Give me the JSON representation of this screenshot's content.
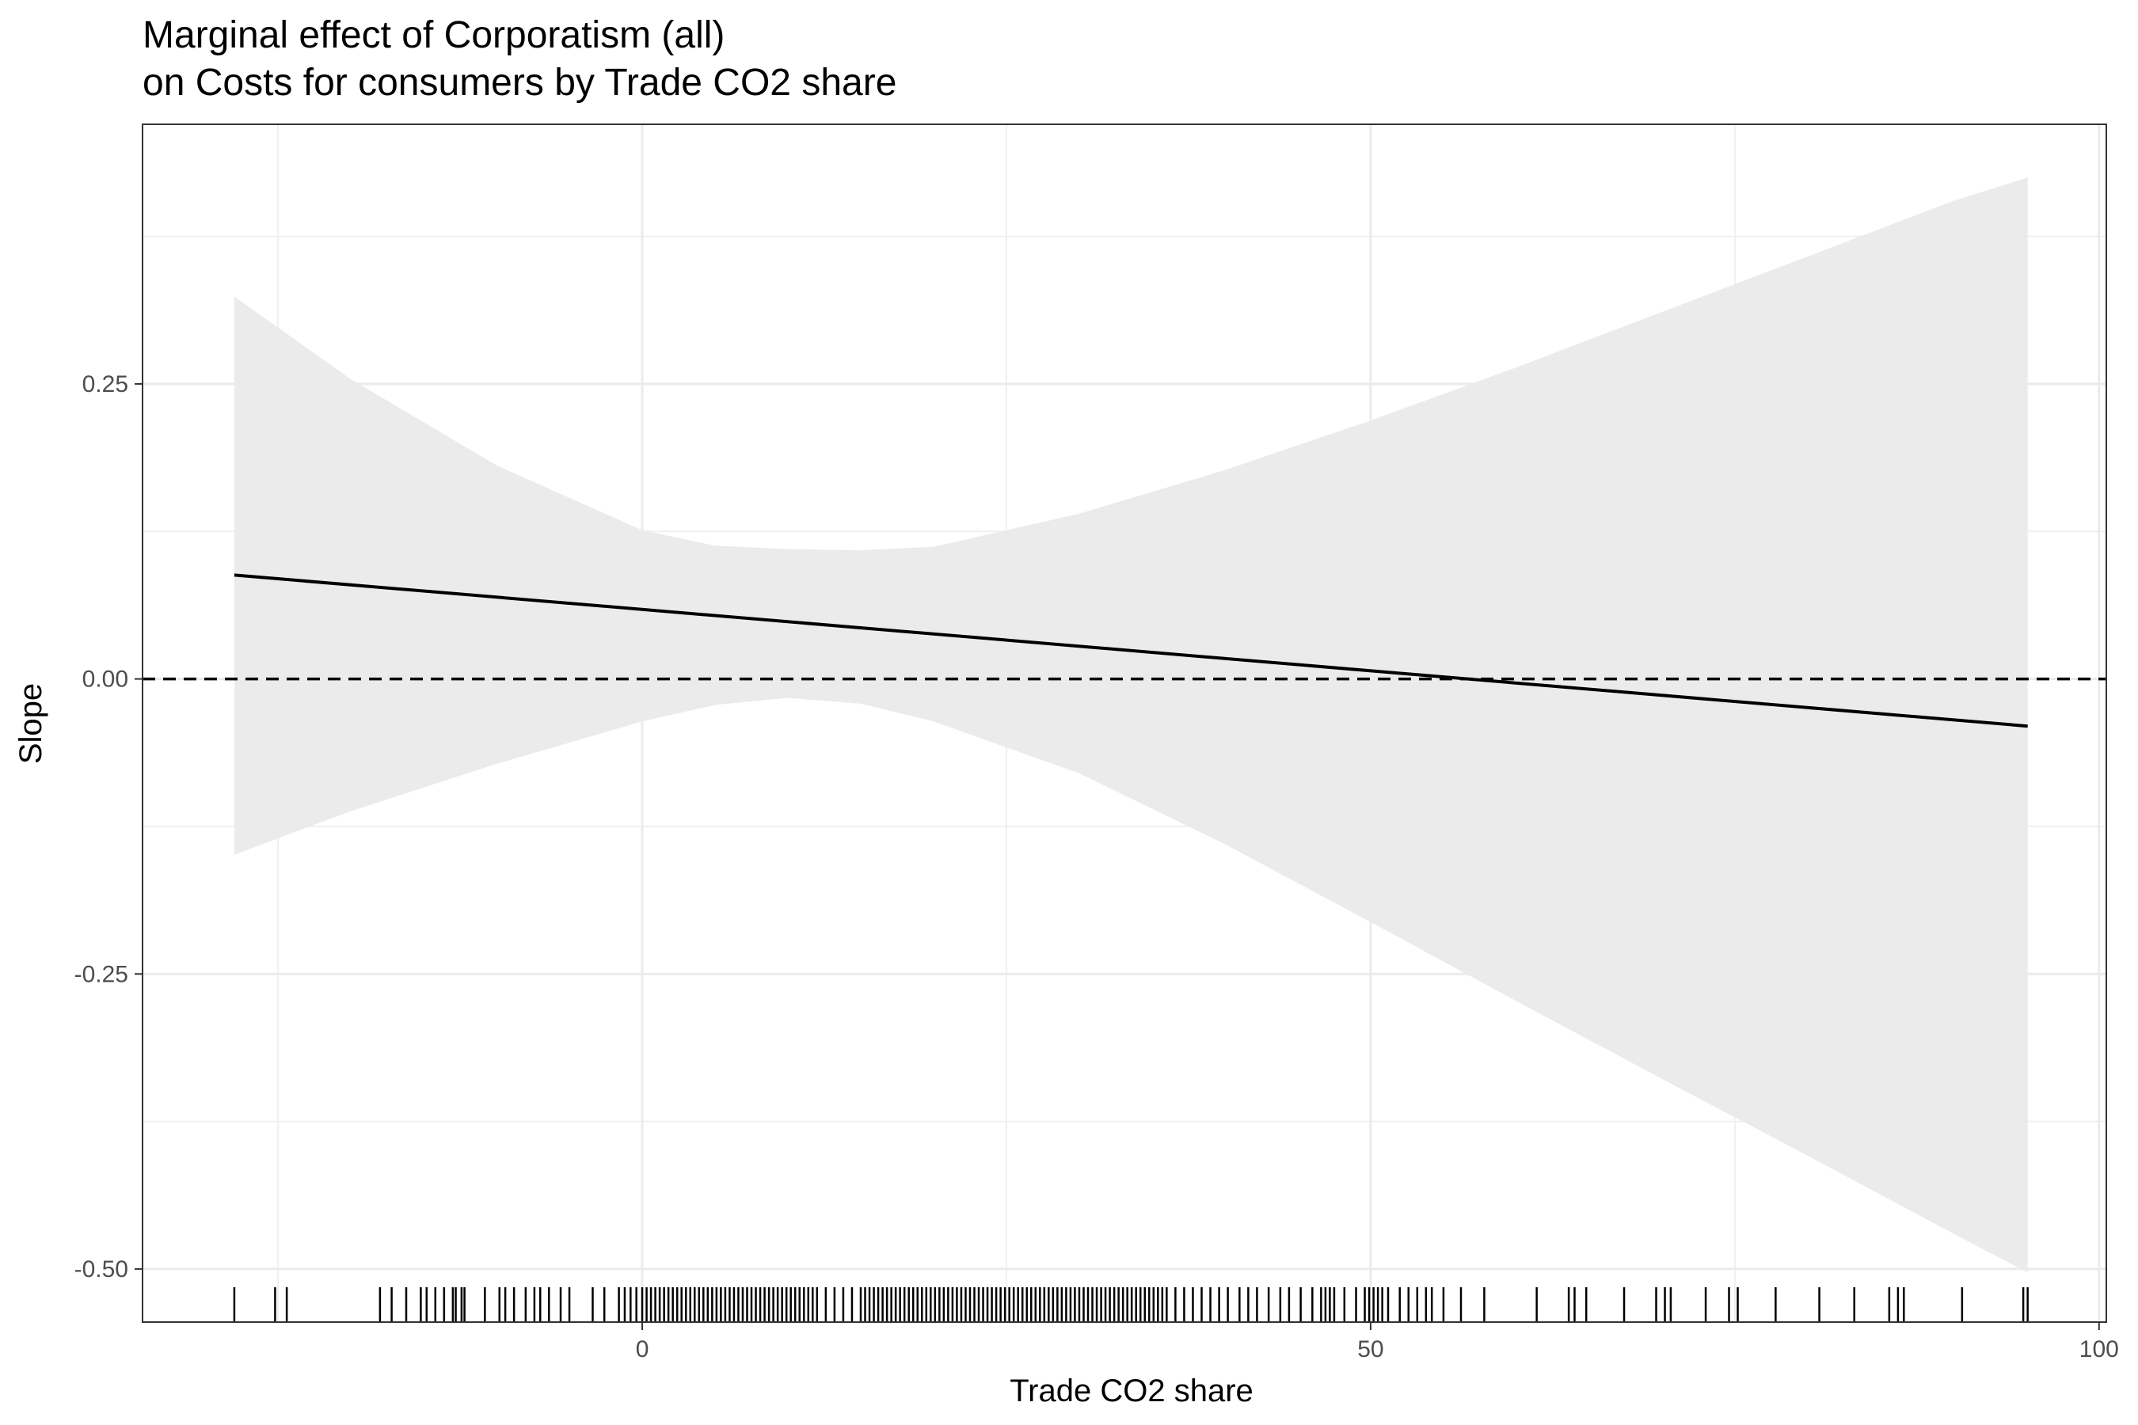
{
  "chart_data": {
    "type": "line",
    "title": "Marginal effect of Corporatism (all)",
    "subtitle": "on Costs for consumers by Trade CO2 share",
    "xlabel": "Trade CO2 share",
    "ylabel": "Slope",
    "xlim": [
      -34.3,
      100.5
    ],
    "ylim": [
      -0.545,
      0.47
    ],
    "x_ticks": [
      0,
      50,
      100
    ],
    "x_tick_labels": [
      "0",
      "50",
      "100"
    ],
    "x_minor_ticks": [
      -25,
      25,
      75
    ],
    "y_ticks": [
      -0.5,
      -0.25,
      0.0,
      0.25
    ],
    "y_tick_labels": [
      "-0.50",
      "-0.25",
      "0.00",
      "0.25"
    ],
    "y_minor_ticks": [
      -0.375,
      -0.125,
      0.125,
      0.375
    ],
    "grid": true,
    "reference_line": {
      "y": 0,
      "style": "dashed"
    },
    "series": [
      {
        "x": [
          -28.0,
          95.1
        ],
        "y": [
          0.088,
          -0.04
        ],
        "colour": "#000000"
      }
    ],
    "ribbon": {
      "colour": "#ebebeb",
      "x": [
        -28,
        -20,
        -10,
        0,
        5,
        10,
        15,
        20,
        30,
        40,
        50,
        60,
        70,
        80,
        90,
        95.1
      ],
      "lower": [
        -0.149,
        -0.112,
        -0.072,
        -0.036,
        -0.022,
        -0.016,
        -0.021,
        -0.036,
        -0.08,
        -0.14,
        -0.206,
        -0.273,
        -0.339,
        -0.404,
        -0.47,
        -0.503
      ],
      "upper": [
        0.324,
        0.254,
        0.181,
        0.126,
        0.113,
        0.11,
        0.109,
        0.112,
        0.14,
        0.177,
        0.219,
        0.264,
        0.311,
        0.358,
        0.405,
        0.425
      ]
    },
    "rug": [
      -28.0,
      -25.2,
      -24.4,
      -18.0,
      -17.2,
      -16.2,
      -15.2,
      -14.8,
      -14.2,
      -13.6,
      -13.0,
      -12.8,
      -12.4,
      -12.2,
      -10.8,
      -9.8,
      -9.4,
      -8.8,
      -8.0,
      -7.4,
      -7.0,
      -6.4,
      -5.6,
      -5.0,
      -3.4,
      -2.6,
      -1.6,
      -1.2,
      -0.8,
      -0.4,
      0.0,
      0.3,
      0.6,
      0.9,
      1.2,
      1.5,
      1.8,
      2.1,
      2.4,
      2.7,
      3.0,
      3.3,
      3.6,
      3.9,
      4.2,
      4.5,
      4.8,
      5.1,
      5.4,
      5.7,
      6.0,
      6.3,
      6.6,
      6.9,
      7.2,
      7.5,
      7.8,
      8.1,
      8.4,
      8.7,
      9.0,
      9.3,
      9.6,
      9.9,
      10.2,
      10.5,
      10.8,
      11.1,
      11.4,
      11.7,
      12.0,
      12.6,
      13.2,
      13.8,
      14.4,
      15.0,
      15.3,
      15.6,
      15.9,
      16.2,
      16.5,
      16.8,
      17.1,
      17.4,
      17.7,
      18.0,
      18.3,
      18.6,
      18.9,
      19.2,
      19.5,
      19.8,
      20.1,
      20.4,
      20.7,
      21.0,
      21.3,
      21.6,
      21.9,
      22.2,
      22.5,
      22.8,
      23.1,
      23.4,
      23.7,
      24.0,
      24.3,
      24.6,
      24.9,
      25.2,
      25.5,
      25.8,
      26.1,
      26.4,
      26.7,
      27.0,
      27.3,
      27.6,
      27.9,
      28.2,
      28.5,
      28.8,
      29.1,
      29.4,
      29.7,
      30.0,
      30.3,
      30.6,
      30.9,
      31.2,
      31.5,
      31.8,
      32.1,
      32.4,
      32.7,
      33.0,
      33.3,
      33.6,
      33.9,
      34.2,
      34.5,
      34.8,
      35.1,
      35.4,
      35.7,
      36.0,
      36.6,
      37.2,
      37.8,
      38.4,
      39.0,
      39.6,
      40.2,
      41.0,
      41.6,
      42.2,
      43.0,
      43.8,
      44.4,
      45.2,
      46.0,
      46.6,
      46.9,
      47.2,
      47.5,
      48.2,
      49.0,
      49.6,
      49.9,
      50.2,
      50.5,
      50.8,
      51.2,
      52.0,
      52.6,
      53.2,
      53.8,
      54.2,
      55.0,
      56.2,
      57.8,
      61.4,
      63.6,
      64.0,
      64.8,
      67.4,
      69.6,
      70.2,
      70.6,
      73.0,
      74.6,
      75.2,
      77.8,
      80.8,
      83.2,
      85.6,
      86.2,
      86.6,
      90.6,
      94.8,
      95.1
    ]
  }
}
